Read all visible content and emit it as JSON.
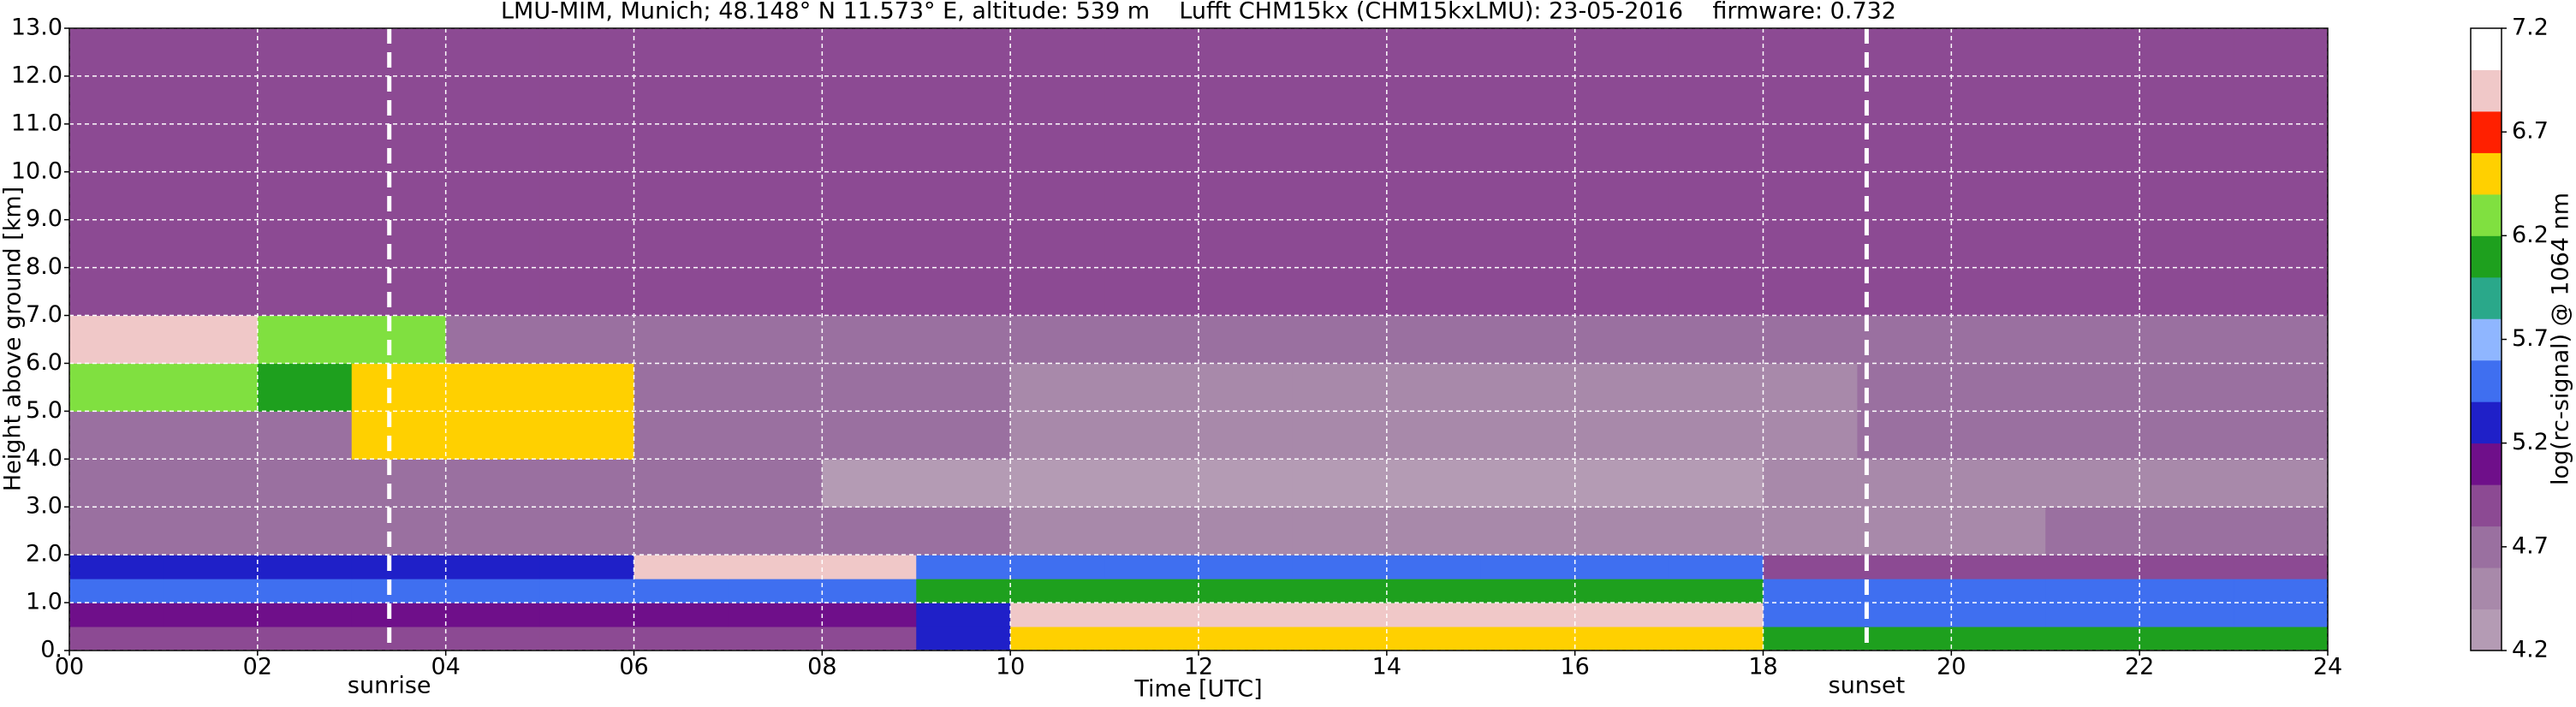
{
  "chart_data": {
    "type": "heatmap",
    "title": "LMU-MIM, Munich; 48.148° N 11.573° E, altitude: 539 m    Lufft CHM15kx (CHM15kxLMU): 23-05-2016    firmware: 0.732",
    "x_label": "Time [UTC]",
    "y_label": "Height above ground [km]",
    "x": [
      0,
      1,
      2,
      3,
      4,
      5,
      6,
      7,
      8,
      9,
      10,
      11,
      12,
      13,
      14,
      15,
      16,
      17,
      18,
      19,
      20,
      21,
      22,
      23,
      24
    ],
    "y": [
      0,
      0.5,
      1,
      1.5,
      2,
      3,
      4,
      5,
      6,
      7,
      9,
      13
    ],
    "z": [
      [
        5.0,
        5.0,
        5.0,
        5.0,
        5.0,
        5.0,
        5.0,
        5.0,
        5.0,
        5.2,
        6.6,
        6.6,
        6.6,
        6.6,
        6.6,
        6.6,
        6.6,
        6.6,
        6.0,
        6.0,
        6.0,
        6.0,
        6.0,
        6.0
      ],
      [
        5.1,
        5.1,
        5.1,
        5.1,
        5.1,
        5.1,
        5.1,
        5.1,
        5.1,
        5.3,
        6.9,
        6.9,
        6.9,
        6.9,
        6.9,
        6.9,
        6.9,
        6.9,
        5.6,
        5.6,
        5.6,
        5.6,
        5.6,
        5.6
      ],
      [
        5.4,
        5.4,
        5.4,
        5.4,
        5.4,
        5.4,
        5.5,
        5.5,
        5.5,
        6.1,
        6.1,
        6.1,
        6.1,
        6.1,
        6.1,
        6.1,
        6.1,
        6.1,
        5.5,
        5.5,
        5.5,
        5.5,
        5.5,
        5.5
      ],
      [
        5.3,
        5.3,
        5.3,
        5.3,
        5.3,
        5.3,
        6.9,
        6.9,
        6.9,
        5.5,
        5.5,
        5.5,
        5.5,
        5.5,
        5.5,
        5.5,
        5.5,
        5.5,
        5.0,
        5.0,
        5.0,
        5.0,
        5.0,
        5.0
      ],
      [
        4.8,
        4.8,
        4.8,
        4.8,
        4.8,
        4.8,
        4.8,
        4.8,
        4.8,
        4.8,
        4.6,
        4.6,
        4.6,
        4.6,
        4.6,
        4.6,
        4.6,
        4.6,
        4.6,
        4.6,
        4.6,
        4.8,
        4.8,
        4.8
      ],
      [
        4.8,
        4.8,
        4.8,
        4.8,
        4.8,
        4.8,
        4.8,
        4.8,
        4.3,
        4.3,
        4.3,
        4.3,
        4.3,
        4.3,
        4.3,
        4.3,
        4.3,
        4.3,
        4.5,
        4.5,
        4.5,
        4.5,
        4.5,
        4.5
      ],
      [
        4.8,
        4.8,
        4.8,
        6.5,
        6.5,
        6.5,
        4.7,
        4.7,
        4.7,
        4.7,
        4.4,
        4.4,
        4.4,
        4.4,
        4.4,
        4.4,
        4.4,
        4.4,
        4.4,
        4.7,
        4.7,
        4.7,
        4.7,
        4.7
      ],
      [
        6.3,
        6.3,
        6.0,
        6.6,
        6.6,
        6.6,
        4.8,
        4.8,
        4.8,
        4.8,
        4.6,
        4.6,
        4.6,
        4.6,
        4.6,
        4.6,
        4.6,
        4.6,
        4.6,
        4.8,
        4.8,
        4.8,
        4.8,
        4.8
      ],
      [
        6.9,
        6.9,
        6.2,
        6.3,
        4.8,
        4.8,
        4.8,
        4.8,
        4.8,
        4.8,
        4.8,
        4.8,
        4.8,
        4.8,
        4.8,
        4.8,
        4.8,
        4.8,
        4.8,
        4.8,
        4.8,
        4.8,
        4.8,
        4.8
      ],
      [
        4.9,
        4.9,
        4.9,
        4.9,
        4.9,
        4.9,
        4.9,
        4.9,
        4.9,
        4.9,
        4.9,
        4.9,
        4.9,
        4.9,
        4.9,
        4.9,
        4.9,
        4.9,
        4.9,
        4.9,
        4.9,
        4.9,
        4.9,
        4.9
      ],
      [
        4.9,
        4.9,
        4.9,
        4.9,
        4.9,
        4.9,
        4.9,
        4.9,
        4.9,
        4.9,
        4.9,
        4.9,
        4.9,
        4.9,
        4.9,
        4.9,
        4.9,
        4.9,
        4.9,
        4.9,
        4.9,
        4.9,
        4.9,
        4.9
      ]
    ],
    "xlim": [
      0,
      24
    ],
    "ylim": [
      0,
      13
    ],
    "xticks": [
      {
        "value": 0,
        "label": "00"
      },
      {
        "value": 2,
        "label": "02"
      },
      {
        "value": 4,
        "label": "04"
      },
      {
        "value": 6,
        "label": "06"
      },
      {
        "value": 8,
        "label": "08"
      },
      {
        "value": 10,
        "label": "10"
      },
      {
        "value": 12,
        "label": "12"
      },
      {
        "value": 14,
        "label": "14"
      },
      {
        "value": 16,
        "label": "16"
      },
      {
        "value": 18,
        "label": "18"
      },
      {
        "value": 20,
        "label": "20"
      },
      {
        "value": 22,
        "label": "22"
      },
      {
        "value": 24,
        "label": "24"
      }
    ],
    "yticks": [
      {
        "value": 0,
        "label": "0."
      },
      {
        "value": 1,
        "label": "1.0"
      },
      {
        "value": 2,
        "label": "2.0"
      },
      {
        "value": 3,
        "label": "3.0"
      },
      {
        "value": 4,
        "label": "4.0"
      },
      {
        "value": 5,
        "label": "5.0"
      },
      {
        "value": 6,
        "label": "6.0"
      },
      {
        "value": 7,
        "label": "7.0"
      },
      {
        "value": 8,
        "label": "8.0"
      },
      {
        "value": 9,
        "label": "9.0"
      },
      {
        "value": 10,
        "label": "10.0"
      },
      {
        "value": 11,
        "label": "11.0"
      },
      {
        "value": 12,
        "label": "12.0"
      },
      {
        "value": 13,
        "label": "13.0"
      }
    ],
    "grid": true,
    "colorbar": {
      "label": "log(rc-signal) @ 1064 nm",
      "clim": [
        4.2,
        7.2
      ],
      "ticks": [
        4.2,
        4.7,
        5.2,
        5.7,
        6.2,
        6.7,
        7.2
      ],
      "colors": [
        "#b49bb4",
        "#a889aa",
        "#9a70a0",
        "#8c4a93",
        "#6f0f8a",
        "#1f20c8",
        "#3f6ff0",
        "#8fb6ff",
        "#2aa88a",
        "#1ea01e",
        "#80e040",
        "#ffd000",
        "#ff2000",
        "#f0c8c8",
        "#ffffff"
      ]
    },
    "annotations": [
      {
        "x": 3.4,
        "label": "sunrise"
      },
      {
        "x": 19.1,
        "label": "sunset"
      }
    ]
  }
}
